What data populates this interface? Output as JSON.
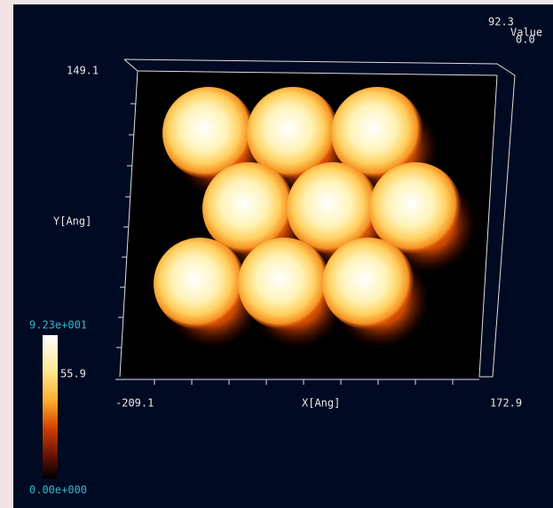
{
  "y_axis": {
    "max": "149.1",
    "label": "Y[Ang]"
  },
  "x_axis": {
    "min": "-209.1",
    "label": "X[Ang]",
    "max": "172.9"
  },
  "z_axis": {
    "max": "92.3",
    "label": "Value",
    "min": "0.0"
  },
  "colorbar": {
    "max": "9.23e+001",
    "mid": "55.9",
    "min": "0.00e+000"
  }
}
